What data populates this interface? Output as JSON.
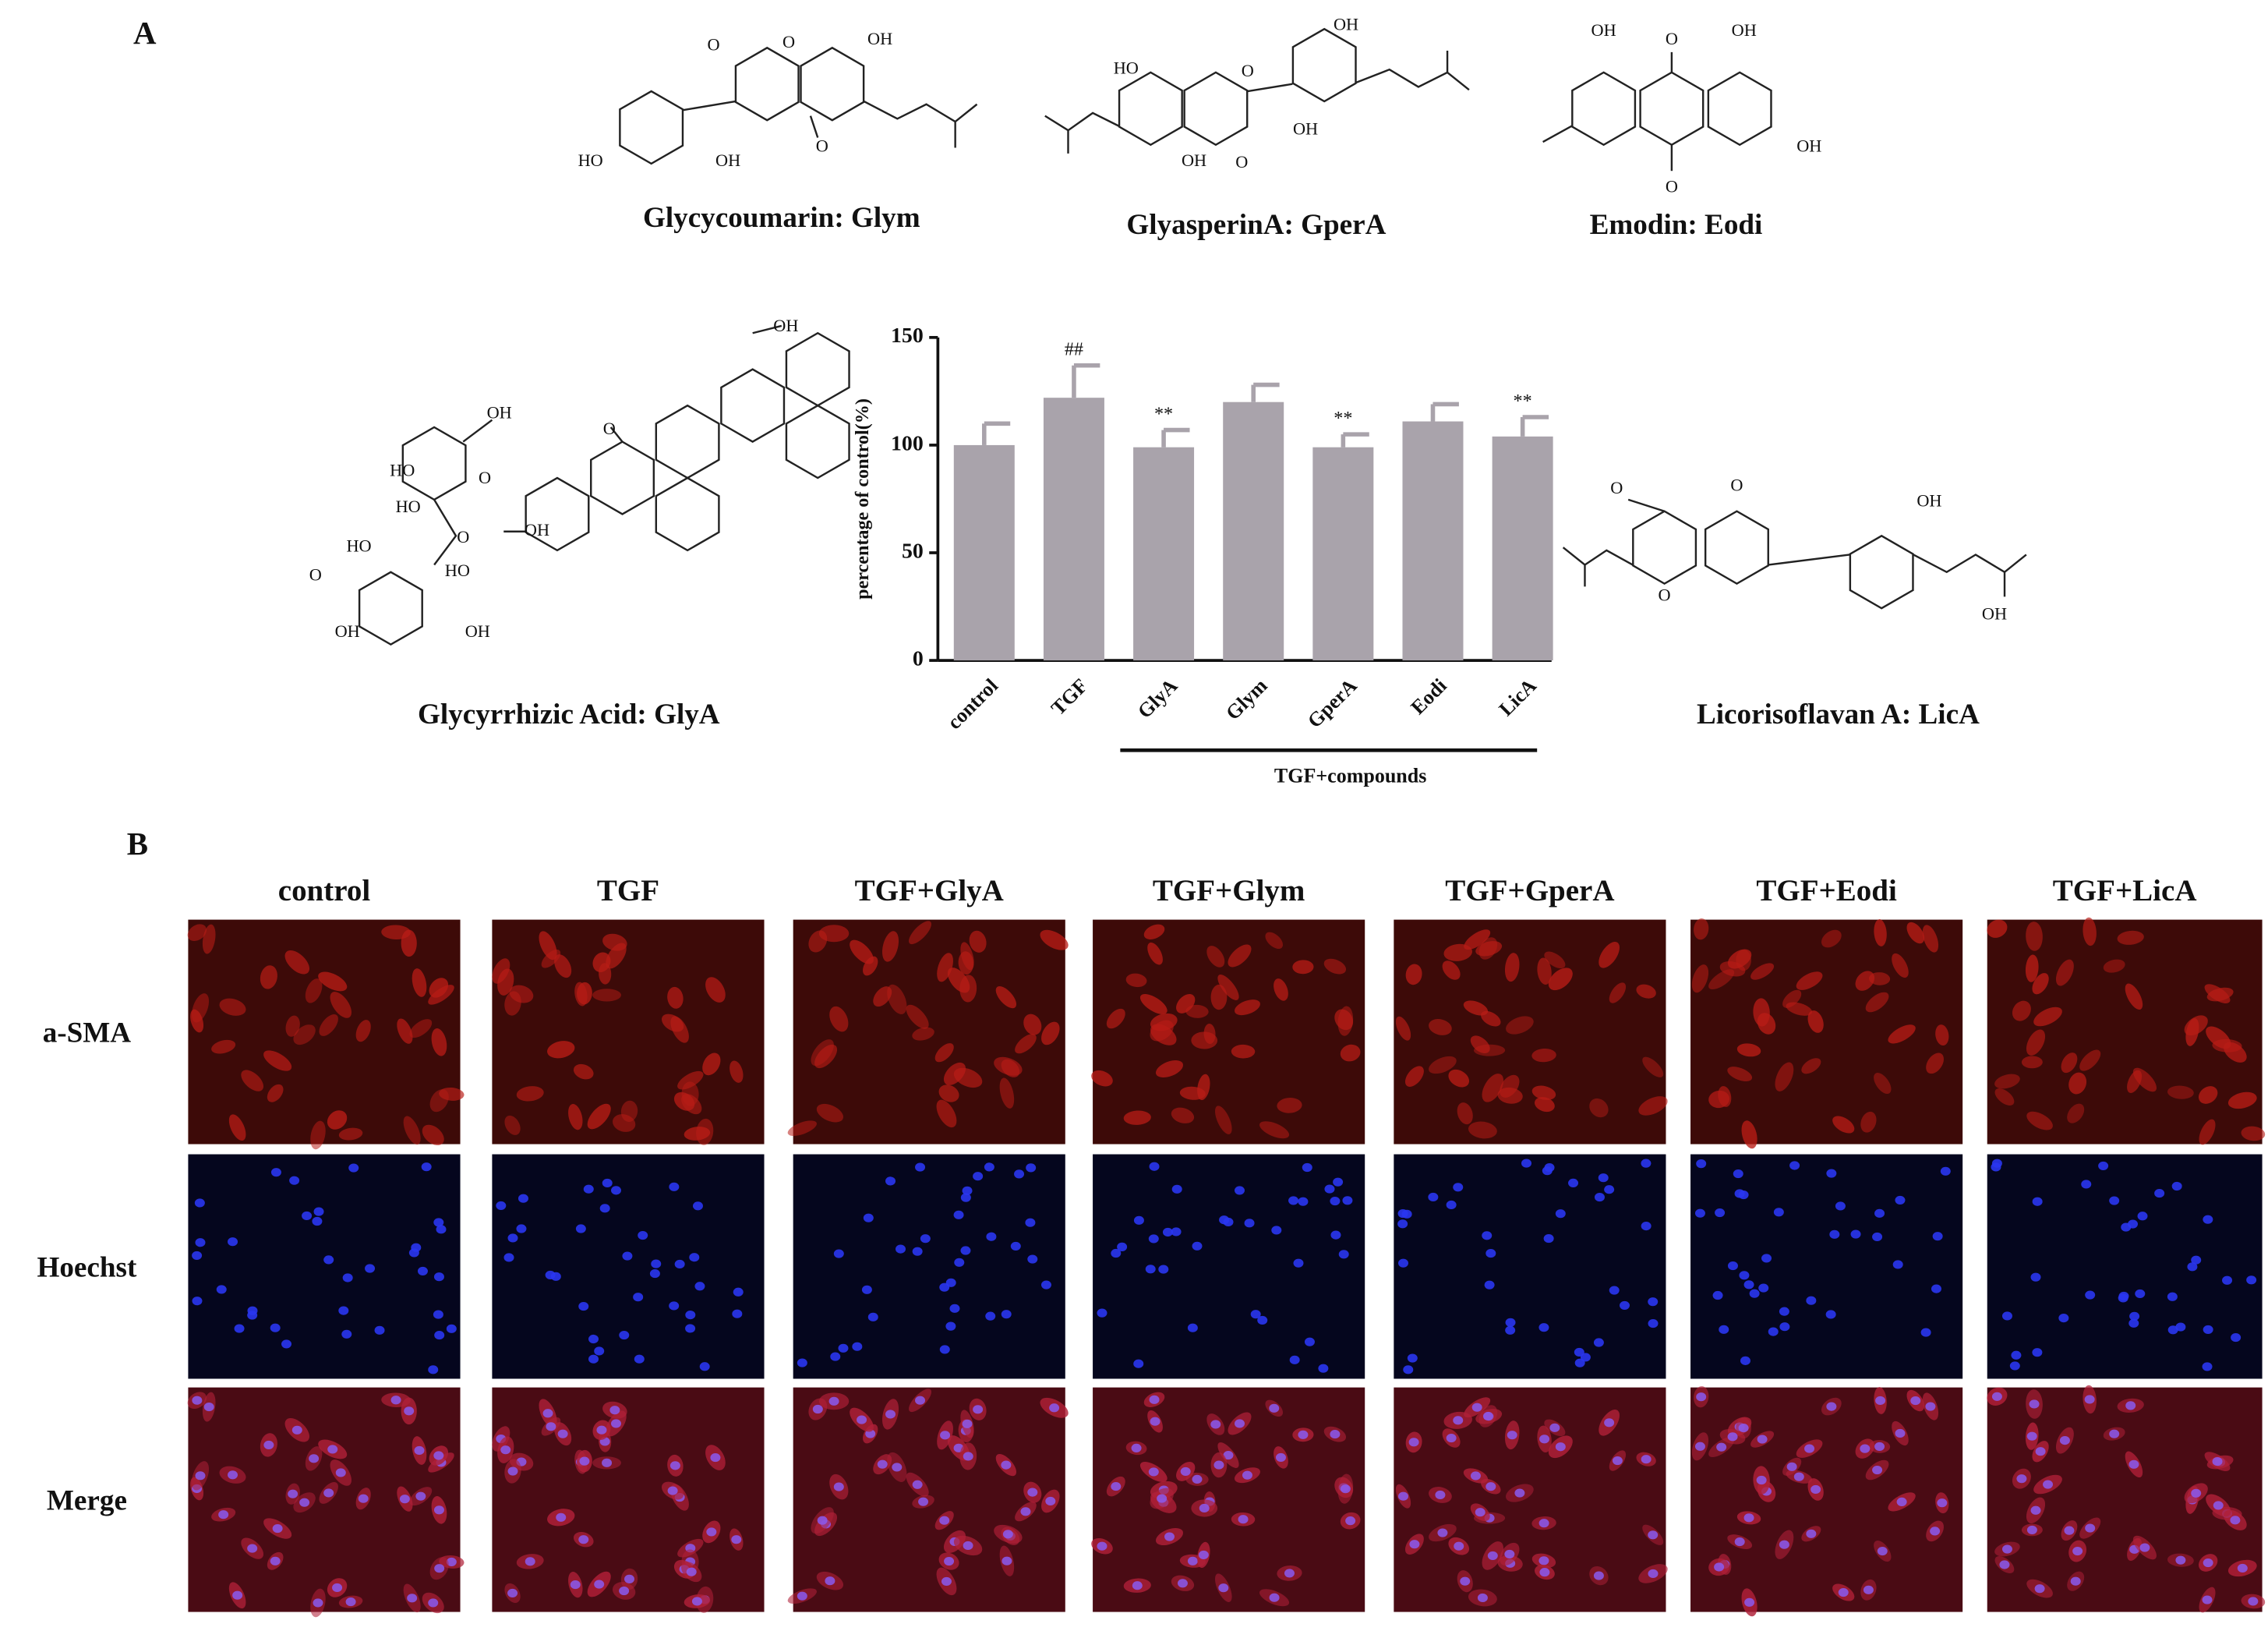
{
  "panel_a_label": "A",
  "compounds": [
    {
      "name": "Glycycoumarin: Glym",
      "atoms": [
        "O",
        "O",
        "OH",
        "HO",
        "OH",
        "O"
      ]
    },
    {
      "name": "GlyasperinA: GperA",
      "atoms": [
        "HO",
        "O",
        "OH",
        "OH",
        "OH",
        "O"
      ]
    },
    {
      "name": "Emodin: Eodi",
      "atoms": [
        "OH",
        "O",
        "OH",
        "OH",
        "O"
      ]
    },
    {
      "name": "Glycyrrhizic Acid: GlyA",
      "atoms": [
        "OH",
        "O",
        "OH",
        "HO",
        "O",
        "HO",
        "O",
        "OH",
        "HO",
        "O",
        "HO",
        "OH",
        "OH"
      ]
    },
    {
      "name": "Licorisoflavan A: LicA",
      "atoms": [
        "O",
        "O",
        "OH",
        "O",
        "OH"
      ]
    }
  ],
  "chart_data": {
    "type": "bar",
    "y_label": "percentage of control(%)",
    "categories": [
      "control",
      "TGF",
      "GlyA",
      "Glym",
      "GperA",
      "Eodi",
      "LicA"
    ],
    "values": [
      100,
      122,
      99,
      120,
      99,
      111,
      104
    ],
    "errors": [
      10,
      15,
      8,
      8,
      6,
      8,
      9
    ],
    "annotations": [
      null,
      "##",
      "**",
      null,
      "**",
      null,
      "**"
    ],
    "group_label": "TGF+compounds",
    "color": "#a9a3ab",
    "ylim": [
      0,
      150
    ],
    "yticks": [
      0,
      50,
      100,
      150
    ]
  },
  "panel_b": {
    "label": "B",
    "columns": [
      "control",
      "TGF",
      "TGF+GlyA",
      "TGF+Glym",
      "TGF+GperA",
      "TGF+Eodi",
      "TGF+LicA"
    ],
    "rows": [
      "a-SMA",
      "Hoechst",
      "Merge"
    ]
  }
}
